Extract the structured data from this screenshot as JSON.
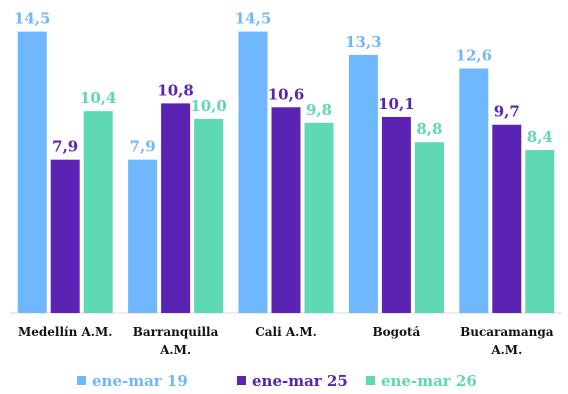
{
  "chart_data": {
    "type": "bar",
    "title": "",
    "xlabel": "",
    "ylabel": "",
    "ylim": [
      0,
      15.2
    ],
    "grid": false,
    "legend_position": "bottom",
    "categories": [
      [
        "Medellín A.M."
      ],
      [
        "Barranquilla",
        "A.M."
      ],
      [
        "Cali A.M."
      ],
      [
        "Bogotá"
      ],
      [
        "Bucaramanga",
        "A.M."
      ]
    ],
    "series": [
      {
        "name": "ene-mar 19",
        "color": "#6fb8ff",
        "value_labels": [
          "14,5",
          "7,9",
          "14,5",
          "13,3",
          "12,6"
        ],
        "values": [
          14.5,
          7.9,
          14.5,
          13.3,
          12.6
        ]
      },
      {
        "name": "ene-mar 25",
        "color": "#5b23b4",
        "value_labels": [
          "7,9",
          "10,8",
          "10,6",
          "10,1",
          "9,7"
        ],
        "values": [
          7.9,
          10.8,
          10.6,
          10.1,
          9.7
        ]
      },
      {
        "name": "ene-mar 26",
        "color": "#5fd8b4",
        "value_labels": [
          "10,4",
          "10,0",
          "9,8",
          "8,8",
          "8,4"
        ],
        "values": [
          10.4,
          10.0,
          9.8,
          8.8,
          8.4
        ]
      }
    ]
  }
}
